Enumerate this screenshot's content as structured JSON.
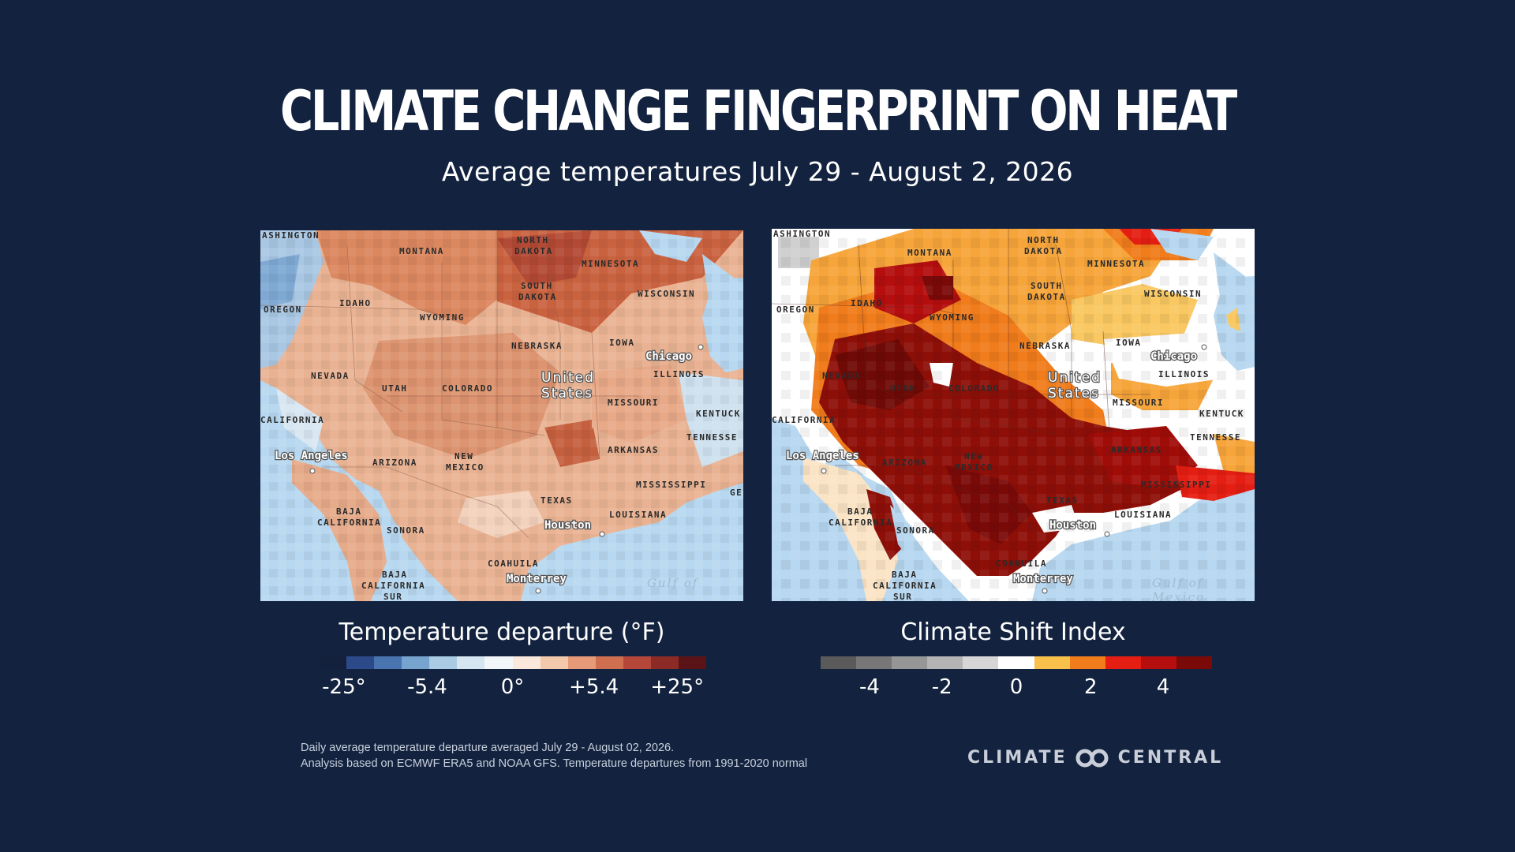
{
  "title": "CLIMATE CHANGE FINGERPRINT ON HEAT",
  "subtitle": "Average temperatures July 29 - August 2, 2026",
  "map_labels": {
    "washington": "ASHINGTON",
    "montana": "MONTANA",
    "north_dakota": [
      "NORTH",
      "DAKOTA"
    ],
    "minnesota": "MINNESOTA",
    "south_dakota": [
      "SOUTH",
      "DAKOTA"
    ],
    "wisconsin": "WISCONSIN",
    "oregon": "OREGON",
    "idaho": "IDAHO",
    "wyoming": "WYOMING",
    "nebraska": "NEBRASKA",
    "iowa": "IOWA",
    "chicago": "Chicago",
    "illinois": "ILLINOIS",
    "nevada": "NEVADA",
    "utah": "UTAH",
    "colorado": "COLORADO",
    "united_states": [
      "United",
      "States"
    ],
    "missouri": "MISSOURI",
    "kentucky": "KENTUCK",
    "california": "CALIFORNIA",
    "tennessee": "TENNESSE",
    "los_angeles": "Los Angeles",
    "arizona": "ARIZONA",
    "new_mexico": [
      "NEW",
      "MEXICO"
    ],
    "arkansas": "ARKANSAS",
    "mississippi": "MISSISSIPPI",
    "georgia": "GE",
    "texas": "TEXAS",
    "louisiana": "LOUISIANA",
    "baja_california": [
      "BAJA",
      "CALIFORNIA"
    ],
    "sonora": "SONORA",
    "houston": "Houston",
    "coahuila": "COAHUILA",
    "baja_california_sur": [
      "BAJA",
      "CALIFORNIA",
      "SUR"
    ],
    "monterrey": "Monterrey",
    "gulf": [
      "Gulf of",
      "Mexico"
    ]
  },
  "legend_left": {
    "title": "Temperature departure (°F)",
    "colors": [
      "#14213d",
      "#2c4a8a",
      "#4a74b0",
      "#76a4cf",
      "#a9cbe3",
      "#d6e6f1",
      "#f3f6f9",
      "#fbe8dc",
      "#f2c9aa",
      "#e79a78",
      "#d06f50",
      "#b4463a",
      "#8c2a26",
      "#5a1418"
    ],
    "ticks": [
      "-25°",
      "-5.4",
      "0°",
      "+5.4",
      "+25°"
    ]
  },
  "legend_right": {
    "title": "Climate Shift Index",
    "colors": [
      "#5a5a5a",
      "#777777",
      "#969696",
      "#b4b4b4",
      "#d6d6d6",
      "#ffffff",
      "#f9c04c",
      "#f07c1c",
      "#e41e12",
      "#b40e0e",
      "#7a0a08"
    ],
    "ticks": [
      "-4",
      "-2",
      "0",
      "2",
      "4"
    ]
  },
  "notes": [
    "Daily average temperature departure averaged July 29 - August 02, 2026.",
    "Analysis based on ECMWF ERA5 and NOAA GFS. Temperature departures from 1991-2020 normal"
  ],
  "brand": {
    "left": "CLIMATE",
    "right": "CENTRAL"
  },
  "colors": {
    "background": "#13233f"
  }
}
